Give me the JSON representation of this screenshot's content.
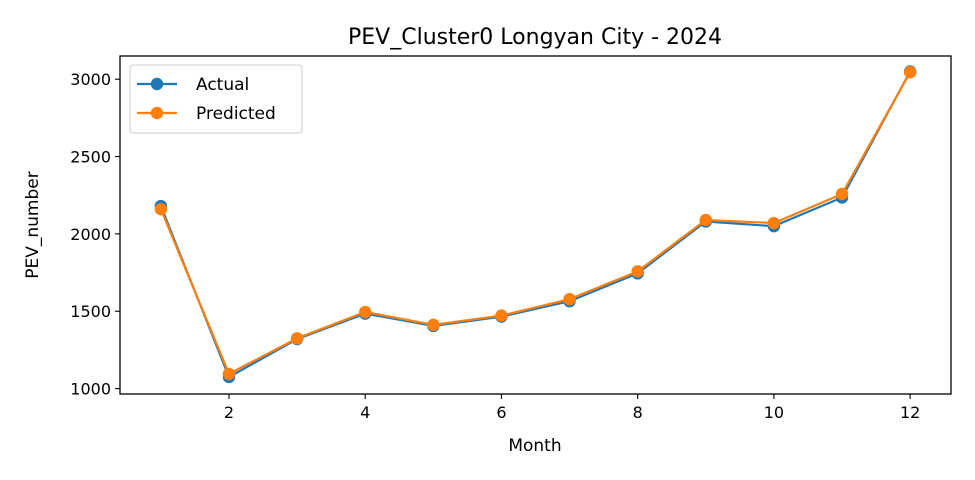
{
  "chart_data": {
    "type": "line",
    "title": "PEV_Cluster0 Longyan City - 2024",
    "xlabel": "Month",
    "ylabel": "PEV_number",
    "x": [
      1,
      2,
      3,
      4,
      5,
      6,
      7,
      8,
      9,
      10,
      11,
      12
    ],
    "xlim": [
      0.4,
      12.6
    ],
    "ylim": [
      965,
      3150
    ],
    "xticks": [
      2,
      4,
      6,
      8,
      10,
      12
    ],
    "yticks": [
      1000,
      1500,
      2000,
      2500,
      3000
    ],
    "grid": false,
    "legend_position": "upper-left",
    "series": [
      {
        "name": "Actual",
        "color": "#1f77b4",
        "marker": "circle",
        "values": [
          2180,
          1075,
          1320,
          1485,
          1405,
          1465,
          1565,
          1745,
          2080,
          2050,
          2235,
          3050
        ]
      },
      {
        "name": "Predicted",
        "color": "#ff7f0e",
        "marker": "circle",
        "values": [
          2160,
          1095,
          1325,
          1495,
          1412,
          1472,
          1578,
          1758,
          2090,
          2070,
          2258,
          3045
        ]
      }
    ]
  }
}
